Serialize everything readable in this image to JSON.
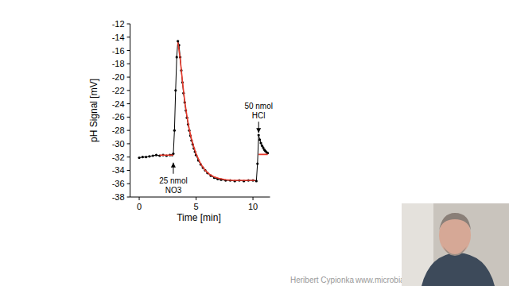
{
  "chart_data": {
    "type": "line",
    "x_label": "Time [min]",
    "y_label": "pH Signal [mV]",
    "xlim": [
      -0.8,
      11.5
    ],
    "xticks": [
      0,
      5,
      10
    ],
    "ylim": [
      -38,
      -12
    ],
    "yticks": [
      -38,
      -36,
      -34,
      -32,
      -30,
      -28,
      -26,
      -24,
      -22,
      -20,
      -18,
      -16,
      -14,
      -12
    ],
    "grid": false,
    "series": [
      {
        "color": "#000000",
        "marker": "circle",
        "line_style": "solid",
        "x": [
          0,
          0.3,
          0.6,
          0.9,
          1.2,
          1.5,
          1.8,
          2.1,
          2.4,
          2.7,
          2.9,
          3.0,
          3.1,
          3.2,
          3.3,
          3.4,
          3.5,
          3.6,
          3.7,
          3.8,
          3.9,
          4.0,
          4.1,
          4.2,
          4.3,
          4.4,
          4.5,
          4.6,
          4.7,
          4.8,
          4.9,
          5.0,
          5.2,
          5.4,
          5.6,
          5.8,
          6.0,
          6.3,
          6.6,
          6.9,
          7.2,
          7.6,
          8.0,
          8.4,
          8.8,
          9.2,
          9.6,
          10.0,
          10.3,
          10.4,
          10.5,
          10.6,
          10.7,
          10.8,
          10.9,
          11.0,
          11.1,
          11.2,
          11.3
        ],
        "values": [
          -32.1,
          -32.0,
          -32.0,
          -31.9,
          -31.8,
          -31.7,
          -31.8,
          -31.7,
          -31.8,
          -31.7,
          -31.7,
          -31.5,
          -28,
          -22,
          -17,
          -14.6,
          -15.2,
          -17,
          -19,
          -20.8,
          -22.4,
          -23.8,
          -25,
          -26.1,
          -27.1,
          -28,
          -28.8,
          -29.5,
          -30.1,
          -30.7,
          -31.2,
          -31.7,
          -32.5,
          -33.1,
          -33.6,
          -34.0,
          -34.4,
          -34.8,
          -35.1,
          -35.3,
          -35.4,
          -35.5,
          -35.5,
          -35.6,
          -35.5,
          -35.6,
          -35.5,
          -35.5,
          -35.6,
          -33,
          -28.7,
          -29.4,
          -29.9,
          -30.3,
          -30.6,
          -30.9,
          -31.1,
          -31.3,
          -31.4
        ]
      },
      {
        "color": "#e8392b",
        "marker": "none",
        "line_style": "solid",
        "x": [
          1.8,
          3.0
        ],
        "values": [
          -31.7,
          -31.7
        ]
      },
      {
        "color": "#e8392b",
        "marker": "none",
        "line_style": "solid",
        "x": [
          3.4,
          3.6,
          3.8,
          4.0,
          4.2,
          4.4,
          4.6,
          4.8,
          5.0,
          5.4,
          5.8,
          6.2,
          6.6,
          7.0,
          7.6,
          8.2,
          9.0,
          10.2
        ],
        "values": [
          -14.8,
          -17.2,
          -20.6,
          -23.6,
          -25.9,
          -27.8,
          -29.3,
          -30.5,
          -31.5,
          -33.0,
          -34.0,
          -34.6,
          -35.0,
          -35.2,
          -35.4,
          -35.5,
          -35.5,
          -35.5
        ]
      },
      {
        "color": "#e8392b",
        "marker": "none",
        "line_style": "solid",
        "x": [
          10.5,
          11.3
        ],
        "values": [
          -31.6,
          -31.6
        ]
      }
    ],
    "annotations": [
      {
        "lines": [
          "25 nmol",
          "NO3"
        ],
        "x": 3.0,
        "y": -32.6,
        "position": "below"
      },
      {
        "lines": [
          "50 nmol",
          "HCl"
        ],
        "x": 10.5,
        "y": -28.6,
        "position": "above"
      }
    ]
  },
  "footer": {
    "author": "Heribert Cypionka",
    "url": "www.microbia"
  }
}
